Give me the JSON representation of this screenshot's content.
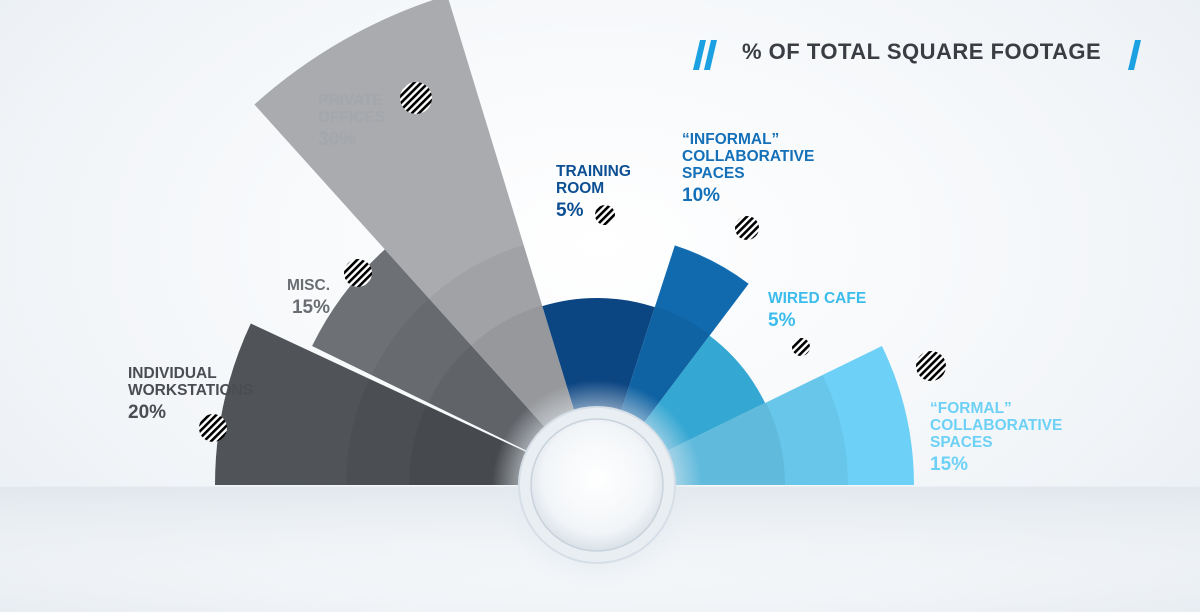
{
  "title": "% OF TOTAL SQUARE FOOTAGE",
  "chart_data": {
    "type": "radial-bar",
    "title": "% OF TOTAL SQUARE FOOTAGE",
    "categories": [
      "INDIVIDUAL WORKSTATIONS",
      "MISC.",
      "PRIVATE OFFICES",
      "TRAINING ROOM",
      "“INFORMAL” COLLABORATIVE SPACES",
      "WIRED CAFE",
      "“FORMAL” COLLABORATIVE SPACES"
    ],
    "values": [
      20,
      15,
      30,
      5,
      10,
      5,
      15
    ],
    "unit": "%",
    "segments": [
      {
        "name_lines": [
          "INDIVIDUAL",
          "WORKSTATIONS"
        ],
        "pct_label": "20%",
        "value": 20,
        "color": "#505357",
        "text_color": "#4a4d52"
      },
      {
        "name_lines": [
          "MISC."
        ],
        "pct_label": "15%",
        "value": 15,
        "color": "#6d7075",
        "text_color": "#6a6d72"
      },
      {
        "name_lines": [
          "PRIVATE",
          "OFFICES"
        ],
        "pct_label": "30%",
        "value": 30,
        "color": "#a9abae",
        "text_color": "#a4a7ab"
      },
      {
        "name_lines": [
          "TRAINING",
          "ROOM"
        ],
        "pct_label": "5%",
        "value": 5,
        "color": "#0d4f93",
        "text_color": "#0d4f93"
      },
      {
        "name_lines": [
          "“INFORMAL”",
          "COLLABORATIVE",
          "SPACES"
        ],
        "pct_label": "10%",
        "value": 10,
        "color": "#1470b8",
        "text_color": "#1470b8"
      },
      {
        "name_lines": [
          "WIRED CAFE"
        ],
        "pct_label": "5%",
        "value": 5,
        "color": "#3bbcec",
        "text_color": "#3bbcec"
      },
      {
        "name_lines": [
          "“FORMAL”",
          "COLLABORATIVE",
          "SPACES"
        ],
        "pct_label": "15%",
        "value": 15,
        "color": "#6dd1f7",
        "text_color": "#6dd1f7"
      }
    ]
  },
  "colors": {
    "accent": "#1ba1e2",
    "title_text": "#3a3d42"
  }
}
